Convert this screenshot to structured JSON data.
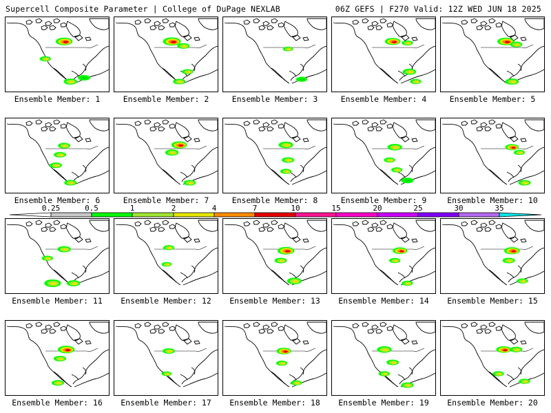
{
  "header": {
    "left_title": "Supercell Composite Parameter | College of DuPage NEXLAB",
    "right_title": "06Z GEFS | F270 Valid: 12Z WED JUN 18 2025"
  },
  "legend": {
    "levels": [
      "0.25",
      "0.5",
      "1",
      "2",
      "4",
      "7",
      "10",
      "15",
      "20",
      "25",
      "30",
      "35"
    ],
    "colors": [
      "#ffffff",
      "#c8c8c8",
      "#00ff00",
      "#a0e632",
      "#e6e600",
      "#ff8c00",
      "#e60000",
      "#ff1493",
      "#ff00c8",
      "#cc00ff",
      "#8000ff",
      "#b469f0",
      "#00e6e6"
    ]
  },
  "panels": [
    {
      "label": "Ensemble Member: 1",
      "blobs": [
        [
          0.56,
          0.32,
          2,
          0.9
        ],
        [
          0.38,
          0.55,
          1,
          0.4
        ],
        [
          0.62,
          0.85,
          1,
          0.6
        ],
        [
          0.75,
          0.8,
          0,
          0.5
        ]
      ]
    },
    {
      "label": "Ensemble Member: 2",
      "blobs": [
        [
          0.55,
          0.32,
          2,
          1.0
        ],
        [
          0.66,
          0.38,
          1,
          0.5
        ],
        [
          0.7,
          0.72,
          1,
          0.4
        ],
        [
          0.62,
          0.85,
          1,
          0.5
        ]
      ]
    },
    {
      "label": "Ensemble Member: 3",
      "blobs": [
        [
          0.62,
          0.42,
          1,
          0.3
        ],
        [
          0.75,
          0.82,
          0,
          0.4
        ]
      ]
    },
    {
      "label": "Ensemble Member: 4",
      "blobs": [
        [
          0.58,
          0.32,
          2,
          0.8
        ],
        [
          0.72,
          0.34,
          1,
          0.4
        ],
        [
          0.74,
          0.72,
          1,
          0.6
        ],
        [
          0.8,
          0.85,
          1,
          0.4
        ]
      ]
    },
    {
      "label": "Ensemble Member: 5",
      "blobs": [
        [
          0.62,
          0.32,
          2,
          0.9
        ],
        [
          0.72,
          0.36,
          1,
          0.5
        ],
        [
          0.68,
          0.85,
          1,
          0.6
        ]
      ]
    },
    {
      "label": "Ensemble Member: 6",
      "blobs": [
        [
          0.56,
          0.36,
          1,
          0.5
        ],
        [
          0.52,
          0.48,
          1,
          0.5
        ],
        [
          0.48,
          0.62,
          1,
          0.5
        ],
        [
          0.62,
          0.85,
          1,
          0.5
        ]
      ]
    },
    {
      "label": "Ensemble Member: 7",
      "blobs": [
        [
          0.62,
          0.35,
          2,
          0.8
        ],
        [
          0.55,
          0.45,
          1,
          0.6
        ],
        [
          0.72,
          0.85,
          1,
          0.5
        ]
      ]
    },
    {
      "label": "Ensemble Member: 8",
      "blobs": [
        [
          0.6,
          0.35,
          1,
          0.7
        ],
        [
          0.62,
          0.55,
          1,
          0.5
        ],
        [
          0.6,
          0.7,
          1,
          0.4
        ]
      ]
    },
    {
      "label": "Ensemble Member: 9",
      "blobs": [
        [
          0.6,
          0.38,
          1,
          0.7
        ],
        [
          0.55,
          0.55,
          1,
          0.4
        ],
        [
          0.62,
          0.68,
          1,
          0.4
        ],
        [
          0.72,
          0.82,
          0,
          0.5
        ]
      ]
    },
    {
      "label": "Ensemble Member: 10",
      "blobs": [
        [
          0.68,
          0.38,
          2,
          0.6
        ],
        [
          0.75,
          0.45,
          1,
          0.4
        ],
        [
          0.8,
          0.85,
          1,
          0.5
        ]
      ]
    },
    {
      "label": "Ensemble Member: 11",
      "blobs": [
        [
          0.56,
          0.4,
          1,
          0.6
        ],
        [
          0.4,
          0.52,
          1,
          0.4
        ],
        [
          0.45,
          0.85,
          1,
          0.9
        ],
        [
          0.65,
          0.85,
          1,
          0.6
        ]
      ]
    },
    {
      "label": "Ensemble Member: 12",
      "blobs": [
        [
          0.52,
          0.38,
          1,
          0.4
        ],
        [
          0.5,
          0.6,
          1,
          0.3
        ]
      ]
    },
    {
      "label": "Ensemble Member: 13",
      "blobs": [
        [
          0.6,
          0.42,
          2,
          0.9
        ],
        [
          0.55,
          0.55,
          1,
          0.5
        ],
        [
          0.68,
          0.82,
          1,
          0.7
        ]
      ]
    },
    {
      "label": "Ensemble Member: 14",
      "blobs": [
        [
          0.65,
          0.42,
          2,
          0.7
        ],
        [
          0.6,
          0.55,
          1,
          0.4
        ],
        [
          0.72,
          0.85,
          1,
          0.4
        ]
      ]
    },
    {
      "label": "Ensemble Member: 15",
      "blobs": [
        [
          0.68,
          0.42,
          2,
          0.8
        ],
        [
          0.65,
          0.55,
          1,
          0.5
        ],
        [
          0.78,
          0.82,
          1,
          0.4
        ]
      ]
    },
    {
      "label": "Ensemble Member: 16",
      "blobs": [
        [
          0.58,
          0.38,
          2,
          0.9
        ],
        [
          0.52,
          0.5,
          1,
          0.5
        ],
        [
          0.5,
          0.82,
          1,
          0.5
        ]
      ]
    },
    {
      "label": "Ensemble Member: 17",
      "blobs": [
        [
          0.52,
          0.4,
          1,
          0.5
        ],
        [
          0.5,
          0.7,
          1,
          0.3
        ]
      ]
    },
    {
      "label": "Ensemble Member: 18",
      "blobs": [
        [
          0.58,
          0.4,
          2,
          0.7
        ],
        [
          0.56,
          0.56,
          1,
          0.4
        ],
        [
          0.7,
          0.82,
          1,
          0.4
        ]
      ]
    },
    {
      "label": "Ensemble Member: 19",
      "blobs": [
        [
          0.5,
          0.38,
          1,
          0.7
        ],
        [
          0.58,
          0.55,
          1,
          0.5
        ],
        [
          0.5,
          0.7,
          1,
          0.4
        ],
        [
          0.72,
          0.85,
          1,
          0.5
        ]
      ]
    },
    {
      "label": "Ensemble Member: 20",
      "blobs": [
        [
          0.6,
          0.38,
          2,
          0.7
        ],
        [
          0.72,
          0.38,
          1,
          0.5
        ],
        [
          0.55,
          0.7,
          1,
          0.4
        ],
        [
          0.8,
          0.8,
          1,
          0.4
        ]
      ]
    }
  ]
}
